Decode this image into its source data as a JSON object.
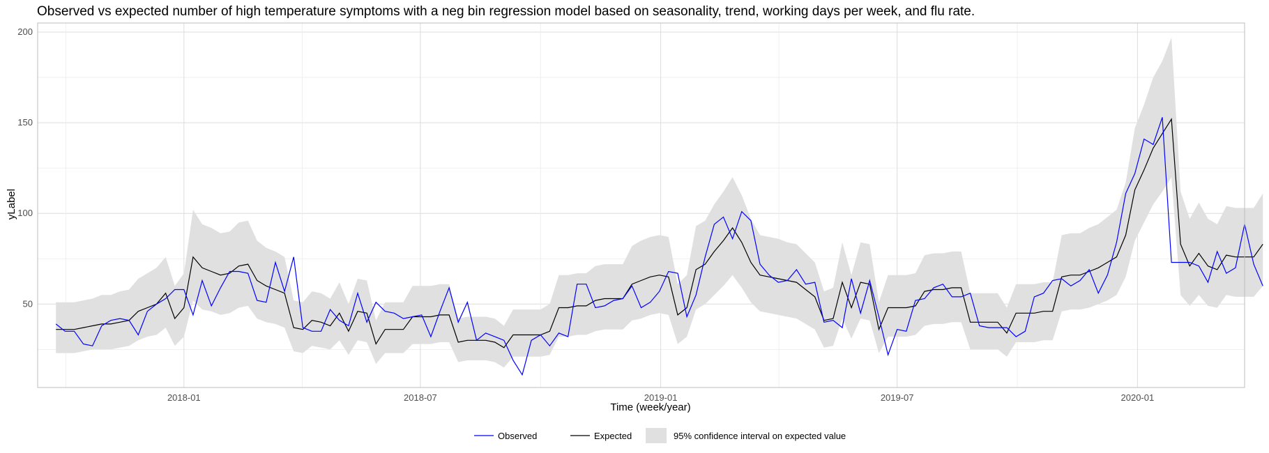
{
  "chart_data": {
    "type": "line",
    "title": "Observed vs expected number of high temperature symptoms with a neg bin regression model based on seasonality, trend, working days per week, and flu rate.",
    "xlabel": "Time (week/year)",
    "ylabel": "yLabel",
    "x_start": "2017-09-25",
    "x_interval": "weekly",
    "xlim": [
      "2017-09-11",
      "2020-03-23"
    ],
    "ylim": [
      4,
      205
    ],
    "x_ticks": [
      {
        "date": "2018-01-01",
        "label": "2018-01"
      },
      {
        "date": "2018-07-01",
        "label": "2018-07"
      },
      {
        "date": "2019-01-01",
        "label": "2019-01"
      },
      {
        "date": "2019-07-01",
        "label": "2019-07"
      },
      {
        "date": "2020-01-01",
        "label": "2020-01"
      }
    ],
    "y_ticks": [
      50,
      100,
      150,
      200
    ],
    "grid": true,
    "legend_position": "bottom",
    "colors": {
      "observed": "#0000ff",
      "expected": "#000000",
      "ci": "#e0e0e0"
    },
    "series": [
      {
        "name": "Observed",
        "values": [
          39,
          35,
          35,
          28,
          27,
          38,
          41,
          42,
          41,
          33,
          46,
          50,
          53,
          58,
          58,
          44,
          63,
          49,
          59,
          68,
          68,
          67,
          52,
          51,
          73,
          57,
          76,
          37,
          35,
          35,
          47,
          41,
          38,
          56,
          40,
          51,
          46,
          45,
          42,
          43,
          44,
          32,
          46,
          59,
          40,
          51,
          30,
          34,
          32,
          30,
          19,
          11,
          30,
          33,
          27,
          34,
          32,
          61,
          61,
          48,
          49,
          52,
          53,
          60,
          48,
          51,
          57,
          68,
          67,
          43,
          55,
          76,
          94,
          98,
          86,
          101,
          96,
          72,
          66,
          62,
          63,
          69,
          61,
          62,
          40,
          41,
          37,
          64,
          45,
          63,
          43,
          22,
          36,
          35,
          52,
          53,
          59,
          61,
          54,
          54,
          56,
          38,
          37,
          37,
          37,
          32,
          35,
          54,
          56,
          63,
          64,
          60,
          63,
          69,
          56,
          66,
          84,
          111,
          122,
          141,
          138,
          153,
          73,
          73,
          73,
          71,
          62,
          79,
          67,
          70,
          94,
          72,
          60
        ]
      },
      {
        "name": "Expected",
        "values": [
          36,
          36,
          36,
          37,
          38,
          39,
          39,
          40,
          41,
          46,
          48,
          50,
          56,
          42,
          48,
          76,
          70,
          68,
          66,
          67,
          71,
          72,
          63,
          60,
          58,
          56,
          37,
          36,
          41,
          40,
          38,
          45,
          35,
          46,
          45,
          28,
          36,
          36,
          36,
          43,
          43,
          43,
          44,
          44,
          29,
          30,
          30,
          30,
          29,
          26,
          33,
          33,
          33,
          33,
          35,
          48,
          48,
          49,
          49,
          52,
          53,
          53,
          53,
          61,
          63,
          65,
          66,
          65,
          44,
          48,
          69,
          72,
          79,
          85,
          92,
          84,
          73,
          66,
          65,
          64,
          63,
          62,
          58,
          54,
          41,
          42,
          62,
          48,
          62,
          61,
          36,
          48,
          48,
          48,
          49,
          57,
          58,
          58,
          59,
          59,
          40,
          40,
          40,
          40,
          34,
          45,
          45,
          45,
          46,
          46,
          65,
          66,
          66,
          68,
          70,
          73,
          76,
          88,
          113,
          124,
          136,
          144,
          152,
          83,
          71,
          78,
          71,
          69,
          77,
          76,
          76,
          76,
          83
        ]
      },
      {
        "name": "95% confidence interval on expected value",
        "lower": [
          23,
          23,
          23,
          24,
          25,
          25,
          25,
          26,
          27,
          30,
          32,
          33,
          37,
          27,
          32,
          52,
          47,
          46,
          44,
          45,
          48,
          49,
          42,
          40,
          39,
          37,
          24,
          23,
          27,
          26,
          25,
          30,
          22,
          30,
          29,
          17,
          23,
          23,
          23,
          28,
          28,
          28,
          29,
          29,
          18,
          19,
          19,
          19,
          18,
          15,
          21,
          21,
          21,
          21,
          22,
          32,
          32,
          33,
          33,
          35,
          36,
          36,
          36,
          41,
          42,
          44,
          45,
          44,
          28,
          32,
          47,
          50,
          55,
          60,
          66,
          59,
          51,
          46,
          45,
          44,
          43,
          42,
          39,
          36,
          26,
          27,
          42,
          31,
          42,
          41,
          23,
          32,
          32,
          32,
          33,
          38,
          39,
          39,
          40,
          40,
          25,
          25,
          25,
          25,
          21,
          29,
          29,
          29,
          30,
          30,
          46,
          47,
          47,
          48,
          50,
          52,
          55,
          65,
          85,
          95,
          105,
          112,
          120,
          55,
          49,
          55,
          49,
          48,
          55,
          54,
          54,
          54,
          60
        ],
        "upper": [
          51,
          51,
          51,
          52,
          53,
          55,
          55,
          57,
          58,
          64,
          67,
          70,
          76,
          60,
          67,
          102,
          94,
          92,
          89,
          90,
          95,
          96,
          85,
          81,
          79,
          76,
          52,
          51,
          57,
          56,
          53,
          62,
          50,
          64,
          63,
          41,
          51,
          51,
          51,
          60,
          60,
          60,
          61,
          61,
          42,
          43,
          43,
          43,
          42,
          38,
          47,
          47,
          47,
          47,
          50,
          66,
          66,
          67,
          67,
          71,
          72,
          72,
          72,
          82,
          85,
          87,
          88,
          87,
          61,
          66,
          93,
          96,
          105,
          112,
          120,
          110,
          97,
          88,
          87,
          86,
          84,
          83,
          78,
          73,
          57,
          59,
          84,
          66,
          84,
          83,
          51,
          66,
          66,
          66,
          67,
          77,
          78,
          78,
          79,
          79,
          56,
          56,
          56,
          56,
          48,
          61,
          61,
          61,
          62,
          62,
          88,
          89,
          89,
          92,
          94,
          98,
          102,
          117,
          147,
          160,
          175,
          184,
          197,
          112,
          97,
          106,
          97,
          94,
          104,
          103,
          103,
          103,
          111
        ]
      }
    ]
  }
}
